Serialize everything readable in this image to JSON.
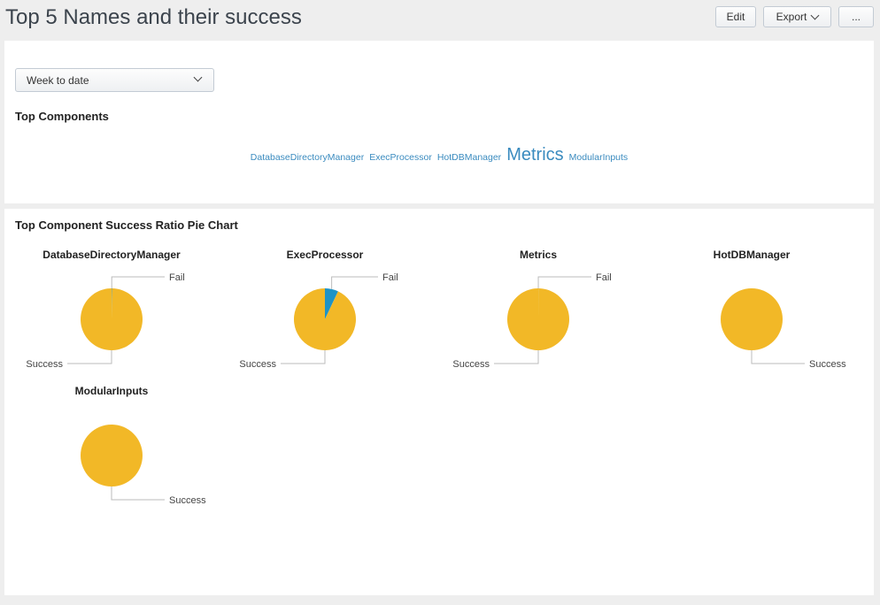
{
  "header": {
    "title": "Top 5 Names and their success",
    "edit_label": "Edit",
    "export_label": "Export",
    "more_label": "..."
  },
  "time_picker": {
    "value": "Week to date"
  },
  "top_components": {
    "title": "Top Components",
    "words": [
      {
        "text": "DatabaseDirectoryManager",
        "size": "small"
      },
      {
        "text": "ExecProcessor",
        "size": "small"
      },
      {
        "text": "HotDBManager",
        "size": "small"
      },
      {
        "text": "Metrics",
        "size": "large"
      },
      {
        "text": "ModularInputs",
        "size": "small"
      }
    ],
    "link_color": "#3a8bbf"
  },
  "pie_panel": {
    "title": "Top Component Success Ratio Pie Chart"
  },
  "chart_data": [
    {
      "type": "pie",
      "title": "DatabaseDirectoryManager",
      "labels": [
        "Fail",
        "Success"
      ],
      "values": [
        0.2,
        99.8
      ],
      "colors": [
        "#1e93c6",
        "#f2b827"
      ]
    },
    {
      "type": "pie",
      "title": "ExecProcessor",
      "labels": [
        "Fail",
        "Success"
      ],
      "values": [
        7,
        93
      ],
      "colors": [
        "#1e93c6",
        "#f2b827"
      ]
    },
    {
      "type": "pie",
      "title": "Metrics",
      "labels": [
        "Fail",
        "Success"
      ],
      "values": [
        0.05,
        99.95
      ],
      "colors": [
        "#1e93c6",
        "#f2b827"
      ]
    },
    {
      "type": "pie",
      "title": "HotDBManager",
      "labels": [
        "Success"
      ],
      "values": [
        100
      ],
      "colors": [
        "#f2b827"
      ]
    },
    {
      "type": "pie",
      "title": "ModularInputs",
      "labels": [
        "Success"
      ],
      "values": [
        100
      ],
      "colors": [
        "#f2b827"
      ]
    }
  ]
}
